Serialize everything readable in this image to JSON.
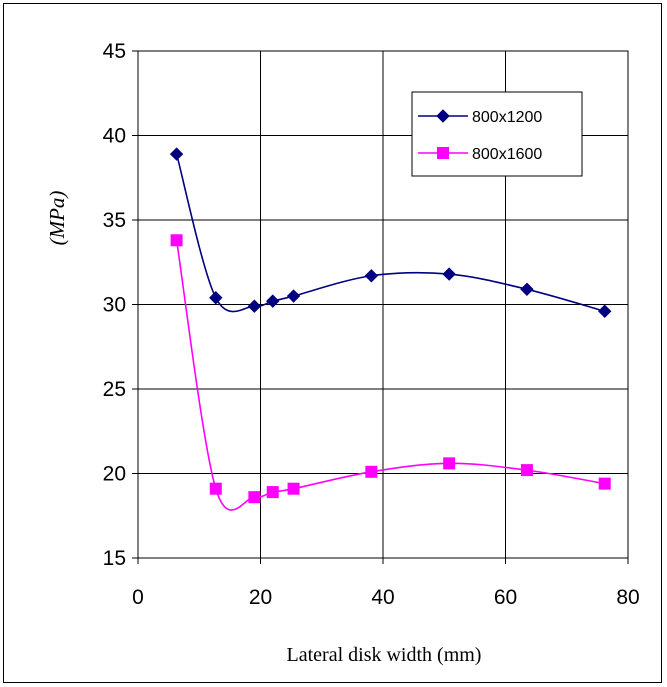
{
  "chart_data": {
    "type": "line",
    "title": "",
    "xlabel": "Lateral disk width (mm)",
    "ylabel": "(MPa)",
    "xlim": [
      0,
      80
    ],
    "ylim": [
      15,
      45
    ],
    "xticks": [
      0,
      20,
      40,
      60,
      80
    ],
    "yticks": [
      15,
      20,
      25,
      30,
      35,
      40,
      45
    ],
    "grid": true,
    "legend_position": "top-right",
    "series": [
      {
        "name": "800x1200",
        "color": "#000080",
        "marker": "diamond",
        "x": [
          6.3,
          12.7,
          19.0,
          22.0,
          25.4,
          38.1,
          50.8,
          63.5,
          76.2
        ],
        "y": [
          38.9,
          30.4,
          29.9,
          30.2,
          30.5,
          31.7,
          31.8,
          30.9,
          29.6
        ]
      },
      {
        "name": "800x1600",
        "color": "#ff00ff",
        "marker": "square",
        "x": [
          6.3,
          12.7,
          19.0,
          22.0,
          25.4,
          38.1,
          50.8,
          63.5,
          76.2
        ],
        "y": [
          33.8,
          19.1,
          18.6,
          18.9,
          19.1,
          20.1,
          20.6,
          20.2,
          19.4
        ]
      }
    ]
  }
}
